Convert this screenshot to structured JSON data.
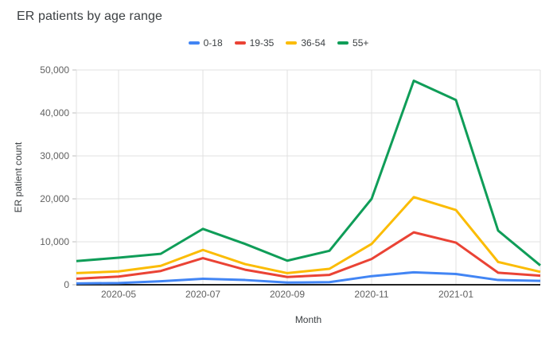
{
  "chart_data": {
    "type": "line",
    "title": "ER patients by age range",
    "xlabel": "Month",
    "ylabel": "ER patient count",
    "x": [
      "2020-04",
      "2020-05",
      "2020-06",
      "2020-07",
      "2020-08",
      "2020-09",
      "2020-10",
      "2020-11",
      "2020-12",
      "2021-01",
      "2021-02",
      "2021-03"
    ],
    "x_tick_labels": [
      "2020-05",
      "2020-07",
      "2020-09",
      "2020-11",
      "2021-01"
    ],
    "y_ticks": [
      0,
      10000,
      20000,
      30000,
      40000,
      50000
    ],
    "y_tick_labels": [
      "0",
      "10,000",
      "20,000",
      "30,000",
      "40,000",
      "50,000"
    ],
    "ylim": [
      0,
      50000
    ],
    "grid": true,
    "legend_position": "top",
    "series": [
      {
        "name": "0-18",
        "color": "#4285f4",
        "values": [
          300,
          400,
          800,
          1400,
          1100,
          500,
          600,
          2000,
          2900,
          2500,
          1100,
          900
        ]
      },
      {
        "name": "19-35",
        "color": "#ea4335",
        "values": [
          1400,
          1900,
          3200,
          6200,
          3500,
          1800,
          2300,
          6000,
          12200,
          9800,
          2800,
          2100
        ]
      },
      {
        "name": "36-54",
        "color": "#fbbc04",
        "values": [
          2700,
          3100,
          4400,
          8100,
          4800,
          2700,
          3700,
          9500,
          20400,
          17400,
          5300,
          3000
        ]
      },
      {
        "name": "55+",
        "color": "#0f9d58",
        "values": [
          5500,
          6300,
          7200,
          13000,
          9500,
          5600,
          7900,
          20000,
          47500,
          43000,
          12600,
          4500
        ]
      }
    ]
  },
  "style_colors": {
    "grid_line": "#e0e0e0",
    "axis_line": "#212121",
    "tick_mark": "#bdbdbd",
    "tick_label": "#616161",
    "axis_title": "#3c4043",
    "title": "#3c4043"
  }
}
